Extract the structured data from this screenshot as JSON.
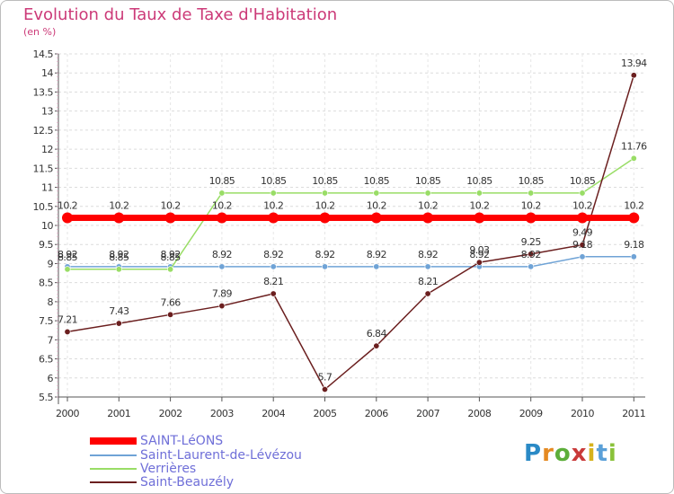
{
  "header": {
    "title": "Evolution du Taux de Taxe d'Habitation",
    "unit": "(en %)"
  },
  "logo": {
    "text": "Proxiti",
    "letter_colors": [
      "#2a8ac6",
      "#e58a22",
      "#5cae3a",
      "#c93a3a",
      "#d6b21c",
      "#5aa0d8",
      "#8ac23a"
    ]
  },
  "chart_data": {
    "type": "line",
    "title": "Evolution du Taux de Taxe d'Habitation",
    "ylabel": "(en %)",
    "xlabel": "",
    "ylim": [
      5.5,
      14.5
    ],
    "yticks": [
      "5.5",
      "6",
      "6.5",
      "7",
      "7.5",
      "8",
      "8.5",
      "9",
      "9.5",
      "10",
      "10.5",
      "11",
      "11.5",
      "12",
      "12.5",
      "13",
      "13.5",
      "14",
      "14.5"
    ],
    "categories": [
      "2000",
      "2001",
      "2002",
      "2003",
      "2004",
      "2005",
      "2006",
      "2007",
      "2008",
      "2009",
      "2010",
      "2011"
    ],
    "grid": "horizontal dashed",
    "legend_position": "bottom-left",
    "series": [
      {
        "name": "SAINT-LéONS",
        "color": "#ff0000",
        "emphasis": "thick",
        "values": [
          10.2,
          10.2,
          10.2,
          10.2,
          10.2,
          10.2,
          10.2,
          10.2,
          10.2,
          10.2,
          10.2,
          10.2
        ],
        "labels": [
          "10.2",
          "10.2",
          "10.2",
          "10.2",
          "10.2",
          "10.2",
          "10.2",
          "10.2",
          "10.2",
          "10.2",
          "10.2",
          "10.2"
        ]
      },
      {
        "name": "Saint-Laurent-de-Lévézou",
        "color": "#6fa3d6",
        "emphasis": "normal",
        "values": [
          8.92,
          8.92,
          8.92,
          8.92,
          8.92,
          8.92,
          8.92,
          8.92,
          8.92,
          8.92,
          9.18,
          9.18
        ],
        "labels": [
          "8.92",
          "8.92",
          "8.92",
          "8.92",
          "8.92",
          "8.92",
          "8.92",
          "8.92",
          "8.92",
          "8.92",
          "9.18",
          "9.18"
        ]
      },
      {
        "name": "Verrières",
        "color": "#99dd66",
        "emphasis": "normal",
        "values": [
          8.85,
          8.85,
          8.85,
          10.85,
          10.85,
          10.85,
          10.85,
          10.85,
          10.85,
          10.85,
          10.85,
          11.76
        ],
        "labels": [
          "8.85",
          "8.85",
          "8.85",
          "10.85",
          "10.85",
          "10.85",
          "10.85",
          "10.85",
          "10.85",
          "10.85",
          "10.85",
          "11.76"
        ]
      },
      {
        "name": "Saint-Beauzély",
        "color": "#6b1f1f",
        "emphasis": "normal",
        "values": [
          7.21,
          7.43,
          7.66,
          7.89,
          8.21,
          5.7,
          6.84,
          8.21,
          9.03,
          9.25,
          9.49,
          13.94
        ],
        "labels": [
          "7.21",
          "7.43",
          "7.66",
          "7.89",
          "8.21",
          "5.7",
          "6.84",
          "8.21",
          "9.03",
          "9.25",
          "9.49",
          "13.94"
        ]
      }
    ]
  }
}
